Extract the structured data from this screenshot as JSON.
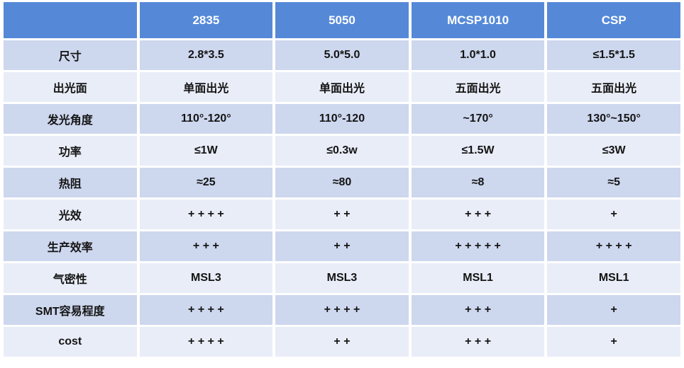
{
  "table": {
    "colors": {
      "header_bg": "#5589D8",
      "header_text": "#FFFFFF",
      "band_dark": "#CDD7EE",
      "band_light": "#E9EDF8",
      "body_text": "#141414"
    },
    "columns": [
      "",
      "2835",
      "5050",
      "MCSP1010",
      "CSP"
    ],
    "rows": [
      {
        "label": "尺寸",
        "values": [
          "2.8*3.5",
          "5.0*5.0",
          "1.0*1.0",
          "≤1.5*1.5"
        ]
      },
      {
        "label": "出光面",
        "values": [
          "单面出光",
          "单面出光",
          "五面出光",
          "五面出光"
        ]
      },
      {
        "label": "发光角度",
        "values": [
          "110°-120°",
          "110°-120",
          "~170°",
          "130°~150°"
        ]
      },
      {
        "label": "功率",
        "values": [
          "≤1W",
          "≤0.3w",
          "≤1.5W",
          "≤3W"
        ]
      },
      {
        "label": "热阻",
        "values": [
          "≈25",
          "≈80",
          "≈8",
          "≈5"
        ]
      },
      {
        "label": "光效",
        "values": [
          "+ + + +",
          "+ +",
          "+ + +",
          "+"
        ]
      },
      {
        "label": "生产效率",
        "values": [
          "+ + +",
          "+ +",
          "+ + + + +",
          "+ + + +"
        ]
      },
      {
        "label": "气密性",
        "values": [
          "MSL3",
          "MSL3",
          "MSL1",
          "MSL1"
        ]
      },
      {
        "label": "SMT容易程度",
        "values": [
          "+ + + +",
          "+ + + +",
          "+ + +",
          "+"
        ]
      },
      {
        "label": "cost",
        "values": [
          "+ + + +",
          "+ +",
          "+ + +",
          "+"
        ]
      }
    ]
  }
}
